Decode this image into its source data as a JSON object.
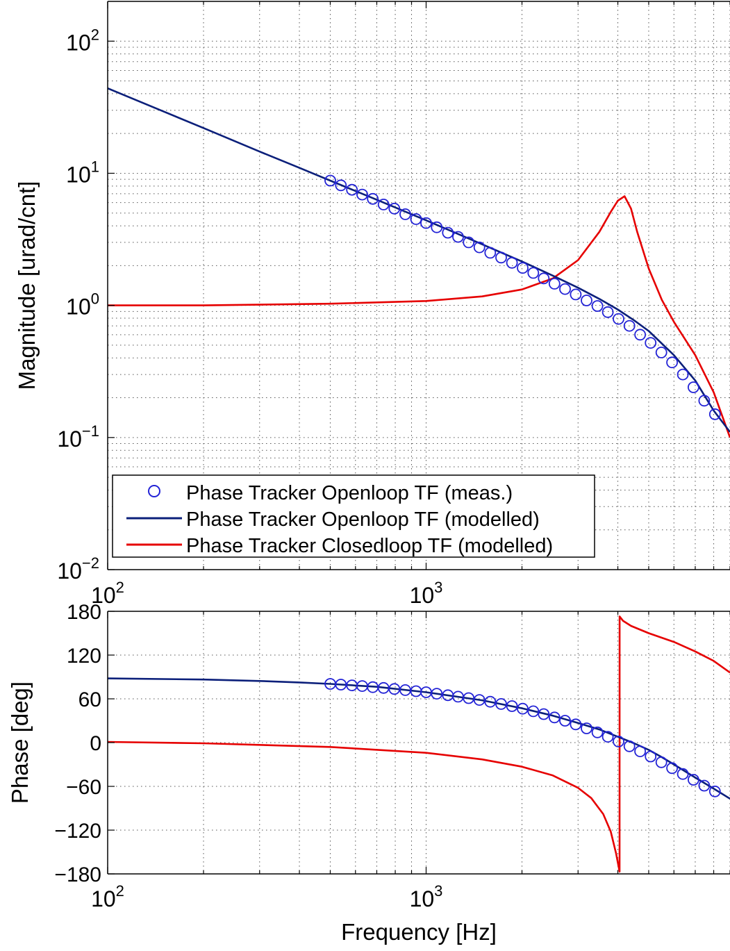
{
  "chart_data": [
    {
      "type": "line",
      "panel": "magnitude",
      "xscale": "log",
      "yscale": "log",
      "xlim": [
        100,
        9000
      ],
      "ylim": [
        0.01,
        200
      ],
      "grid": true,
      "xlabel": "",
      "ylabel": "Magnitude [urad/cnt]",
      "x_ticks": [
        {
          "value": 100,
          "base": "10",
          "exp": "2"
        },
        {
          "value": 1000,
          "base": "10",
          "exp": "3"
        }
      ],
      "y_ticks": [
        {
          "value": 0.01,
          "base": "10",
          "exp": "−2"
        },
        {
          "value": 0.1,
          "base": "10",
          "exp": "−1"
        },
        {
          "value": 1,
          "base": "10",
          "exp": "0"
        },
        {
          "value": 10,
          "base": "10",
          "exp": "1"
        },
        {
          "value": 100,
          "base": "10",
          "exp": "2"
        }
      ],
      "legend_position": "bottom-left",
      "series": [
        {
          "name": "Phase Tracker Openloop TF (meas.)",
          "style": "markers",
          "marker": "circle",
          "color": "#2323d6",
          "x": [
            500,
            540,
            585,
            630,
            680,
            735,
            795,
            860,
            930,
            1000,
            1080,
            1170,
            1260,
            1360,
            1470,
            1590,
            1720,
            1860,
            2010,
            2170,
            2340,
            2530,
            2730,
            2950,
            3190,
            3450,
            3720,
            4020,
            4350,
            4700,
            5070,
            5480,
            5920,
            6400,
            6910,
            7470,
            8070
          ],
          "y": [
            8.8,
            8.1,
            7.5,
            6.9,
            6.4,
            5.8,
            5.4,
            4.9,
            4.5,
            4.2,
            3.9,
            3.55,
            3.3,
            3.0,
            2.75,
            2.5,
            2.3,
            2.1,
            1.92,
            1.76,
            1.6,
            1.46,
            1.33,
            1.21,
            1.09,
            0.99,
            0.89,
            0.79,
            0.7,
            0.6,
            0.52,
            0.44,
            0.37,
            0.3,
            0.24,
            0.19,
            0.15
          ]
        },
        {
          "name": "Phase Tracker Openloop TF (modelled)",
          "style": "line",
          "color": "#0b1f7a",
          "x": [
            100,
            150,
            200,
            300,
            400,
            500,
            700,
            1000,
            1500,
            2000,
            2500,
            3000,
            3500,
            4000,
            4500,
            5000,
            6000,
            7000,
            8000,
            9000
          ],
          "y": [
            44,
            29.3,
            22,
            14.6,
            11,
            8.8,
            6.3,
            4.4,
            2.9,
            2.15,
            1.68,
            1.36,
            1.12,
            0.93,
            0.77,
            0.64,
            0.42,
            0.27,
            0.16,
            0.11
          ]
        },
        {
          "name": "Phase Tracker Closedloop TF (modelled)",
          "style": "line",
          "color": "#e60000",
          "x": [
            100,
            200,
            500,
            1000,
            1500,
            2000,
            2500,
            3000,
            3500,
            3800,
            4000,
            4200,
            4400,
            4600,
            5000,
            5500,
            6000,
            7000,
            8000,
            9000
          ],
          "y": [
            1.0,
            1.0,
            1.03,
            1.08,
            1.17,
            1.32,
            1.6,
            2.2,
            3.6,
            5.1,
            6.2,
            6.7,
            5.4,
            3.6,
            1.9,
            1.1,
            0.75,
            0.42,
            0.22,
            0.1
          ]
        }
      ]
    },
    {
      "type": "line",
      "panel": "phase",
      "xscale": "log",
      "yscale": "linear",
      "xlim": [
        100,
        9000
      ],
      "ylim": [
        -180,
        180
      ],
      "grid": true,
      "xlabel": "Frequency [Hz]",
      "ylabel": "Phase [deg]",
      "x_ticks": [
        {
          "value": 100,
          "base": "10",
          "exp": "2"
        },
        {
          "value": 1000,
          "base": "10",
          "exp": "3"
        }
      ],
      "y_ticks": [
        {
          "value": 180,
          "label": "180"
        },
        {
          "value": 120,
          "label": "120"
        },
        {
          "value": 60,
          "label": "60"
        },
        {
          "value": 0,
          "label": "0"
        },
        {
          "value": -60,
          "label": "−60"
        },
        {
          "value": -120,
          "label": "−120"
        },
        {
          "value": -180,
          "label": "−180"
        }
      ],
      "series": [
        {
          "name": "Phase Tracker Openloop TF (meas.)",
          "style": "markers",
          "marker": "circle",
          "color": "#2323d6",
          "x": [
            500,
            540,
            585,
            630,
            680,
            735,
            795,
            860,
            930,
            1000,
            1080,
            1170,
            1260,
            1360,
            1470,
            1590,
            1720,
            1860,
            2010,
            2170,
            2340,
            2530,
            2730,
            2950,
            3190,
            3450,
            3720,
            4020,
            4350,
            4700,
            5070,
            5480,
            5920,
            6400,
            6910,
            7470,
            8070
          ],
          "y": [
            80.5,
            79.5,
            78.5,
            77.5,
            76,
            75,
            73.5,
            72,
            70.5,
            69,
            67,
            65,
            63,
            61,
            58.5,
            56,
            53,
            50,
            46.5,
            43,
            39,
            34.5,
            30,
            25,
            19.5,
            14,
            8,
            1.5,
            -5,
            -12,
            -19,
            -27,
            -35,
            -43,
            -51,
            -59,
            -67
          ]
        },
        {
          "name": "Phase Tracker Openloop TF (modelled)",
          "style": "line",
          "color": "#0b1f7a",
          "x": [
            100,
            200,
            300,
            400,
            500,
            700,
            1000,
            1500,
            2000,
            2500,
            3000,
            3500,
            4000,
            4500,
            5000,
            5500,
            6000,
            7000,
            8000,
            9000
          ],
          "y": [
            88,
            86.5,
            84.5,
            82.5,
            80.5,
            76.5,
            69,
            58,
            47,
            37,
            27,
            18,
            8,
            -1,
            -10,
            -20,
            -30,
            -48,
            -63,
            -77
          ]
        },
        {
          "name": "Phase Tracker Closedloop TF (modelled)",
          "style": "line",
          "color": "#e60000",
          "x": [
            100,
            200,
            500,
            1000,
            1500,
            2000,
            2500,
            3000,
            3300,
            3600,
            3800,
            3950,
            4049,
            4051,
            4150,
            4400,
            5000,
            6000,
            7000,
            8000,
            9000
          ],
          "y": [
            1,
            -1,
            -6,
            -14,
            -23,
            -33,
            -45,
            -62,
            -76,
            -98,
            -122,
            -152,
            -177,
            173,
            167,
            160,
            150,
            138,
            125,
            112,
            96
          ]
        }
      ]
    }
  ]
}
